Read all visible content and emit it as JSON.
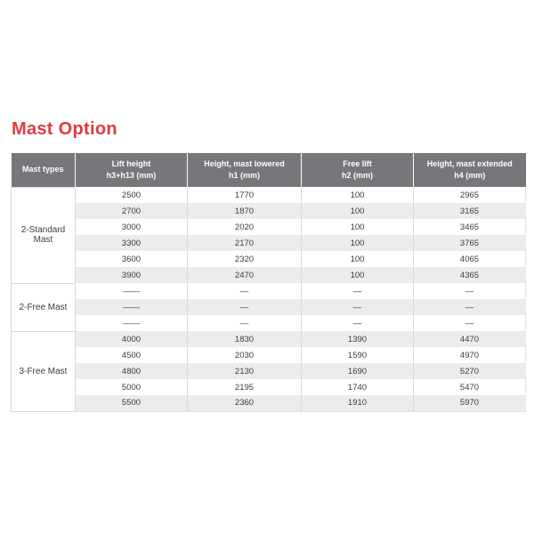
{
  "page": {
    "title": "Mast Option"
  },
  "colors": {
    "title": "#e03a40",
    "header_bg": "#76777a",
    "stripe": "#ececed"
  },
  "table": {
    "headers": [
      "Mast types",
      "Lift height\nh3+h13 (mm)",
      "Height, mast lowered\nh1 (mm)",
      "Free lift\nh2 (mm)",
      "Height, mast extended\nh4 (mm)"
    ],
    "sections": [
      {
        "mast_type": "2-Standard Mast",
        "rows": [
          [
            "2500",
            "1770",
            "100",
            "2965"
          ],
          [
            "2700",
            "1870",
            "100",
            "3165"
          ],
          [
            "3000",
            "2020",
            "100",
            "3465"
          ],
          [
            "3300",
            "2170",
            "100",
            "3765"
          ],
          [
            "3600",
            "2320",
            "100",
            "4065"
          ],
          [
            "3900",
            "2470",
            "100",
            "4365"
          ]
        ]
      },
      {
        "mast_type": "2-Free Mast",
        "rows": [
          [
            "——",
            "—",
            "—",
            "—"
          ],
          [
            "——",
            "—",
            "—",
            "—"
          ],
          [
            "——",
            "—",
            "—",
            "—"
          ]
        ]
      },
      {
        "mast_type": "3-Free Mast",
        "rows": [
          [
            "4000",
            "1830",
            "1390",
            "4470"
          ],
          [
            "4500",
            "2030",
            "1590",
            "4970"
          ],
          [
            "4800",
            "2130",
            "1690",
            "5270"
          ],
          [
            "5000",
            "2195",
            "1740",
            "5470"
          ],
          [
            "5500",
            "2360",
            "1910",
            "5970"
          ]
        ]
      }
    ]
  }
}
